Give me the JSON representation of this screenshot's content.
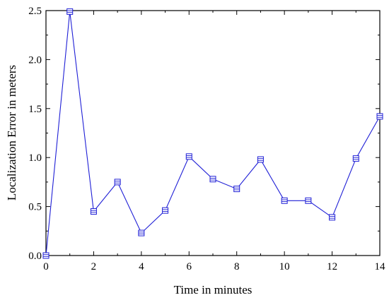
{
  "chart_data": {
    "type": "line",
    "title": "",
    "xlabel": "Time in minutes",
    "ylabel": "Localization Error in meters",
    "xlim": [
      0,
      14
    ],
    "ylim": [
      0,
      2.5
    ],
    "xticks": [
      0,
      2,
      4,
      6,
      8,
      10,
      12,
      14
    ],
    "yticks": [
      0.0,
      0.5,
      1.0,
      1.5,
      2.0,
      2.5
    ],
    "xtick_labels": [
      "0",
      "2",
      "4",
      "6",
      "8",
      "10",
      "12",
      "14"
    ],
    "ytick_labels": [
      "0.0",
      "0.5",
      "1.0",
      "1.5",
      "2.0",
      "2.5"
    ],
    "grid": false,
    "legend": "none",
    "colors": {
      "series": "#1f1fd6",
      "axis": "#000000"
    },
    "marker": "square-with-lines",
    "series": [
      {
        "x": [
          0,
          1,
          2,
          3,
          4,
          5,
          6,
          7,
          8,
          9,
          10,
          11,
          12,
          13,
          14
        ],
        "values": [
          0.0,
          2.49,
          0.45,
          0.75,
          0.23,
          0.46,
          1.01,
          0.78,
          0.68,
          0.98,
          0.56,
          0.56,
          0.39,
          0.99,
          1.42
        ]
      }
    ]
  }
}
